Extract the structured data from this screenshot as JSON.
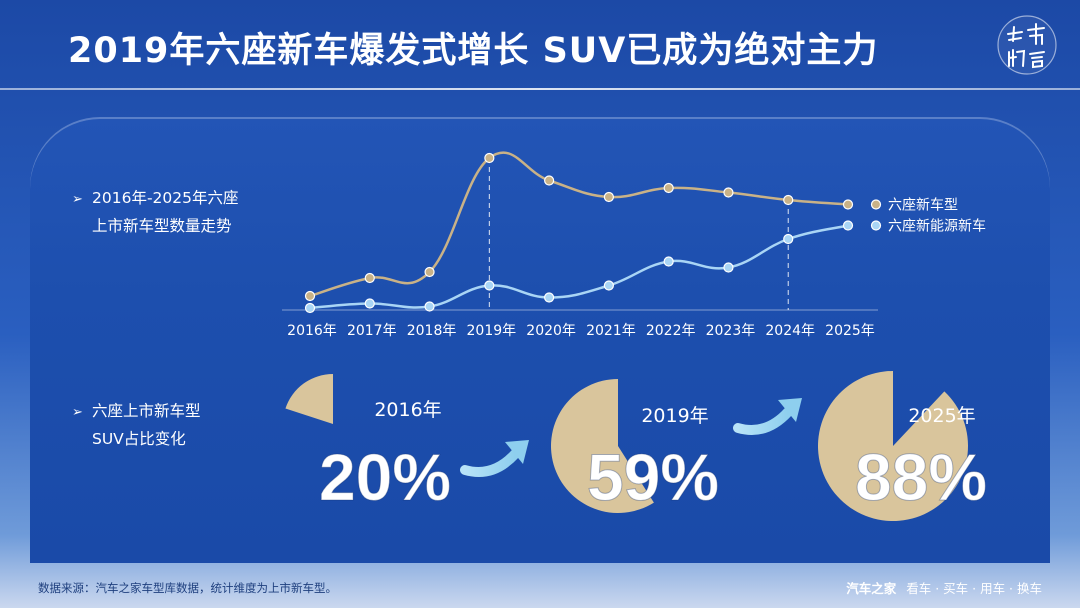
{
  "title": "2019年六座新车爆发式增长 SUV已成为绝对主力",
  "logo_text": "车市物语",
  "section1": {
    "line1": "2016年-2025年六座",
    "line2": "上市新车型数量走势"
  },
  "section2": {
    "line1": "六座上市新车型",
    "line2": "SUV占比变化"
  },
  "footer": {
    "source": "数据来源：汽车之家车型库数据，统计维度为上市新车型。",
    "brand": "汽车之家",
    "slogan": "看车 · 买车 · 用车 · 换车"
  },
  "colors": {
    "six_seat": "#c9b287",
    "nev": "#a9d5f5",
    "pie": "#d9c59c",
    "arrow": "#8ecfee"
  },
  "chart_data": [
    {
      "type": "line",
      "title": "2016年-2025年六座上市新车型数量走势",
      "x": [
        "2016年",
        "2017年",
        "2018年",
        "2019年",
        "2020年",
        "2021年",
        "2022年",
        "2023年",
        "2024年",
        "2025年"
      ],
      "ylim": [
        0,
        100
      ],
      "grid": false,
      "legend_position": "right",
      "highlight_x": [
        "2019年",
        "2024年"
      ],
      "series": [
        {
          "name": "六座新车型",
          "values": [
            8,
            20,
            24,
            100,
            85,
            74,
            80,
            77,
            72,
            69
          ]
        },
        {
          "name": "六座新能源新车",
          "values": [
            0,
            3,
            1,
            15,
            7,
            15,
            31,
            27,
            46,
            55
          ]
        }
      ]
    },
    {
      "type": "pie",
      "title": "六座上市新车型SUV占比变化",
      "items": [
        {
          "label": "2016年",
          "value": 20,
          "display": "20%"
        },
        {
          "label": "2019年",
          "value": 59,
          "display": "59%"
        },
        {
          "label": "2025年",
          "value": 88,
          "display": "88%"
        }
      ]
    }
  ]
}
